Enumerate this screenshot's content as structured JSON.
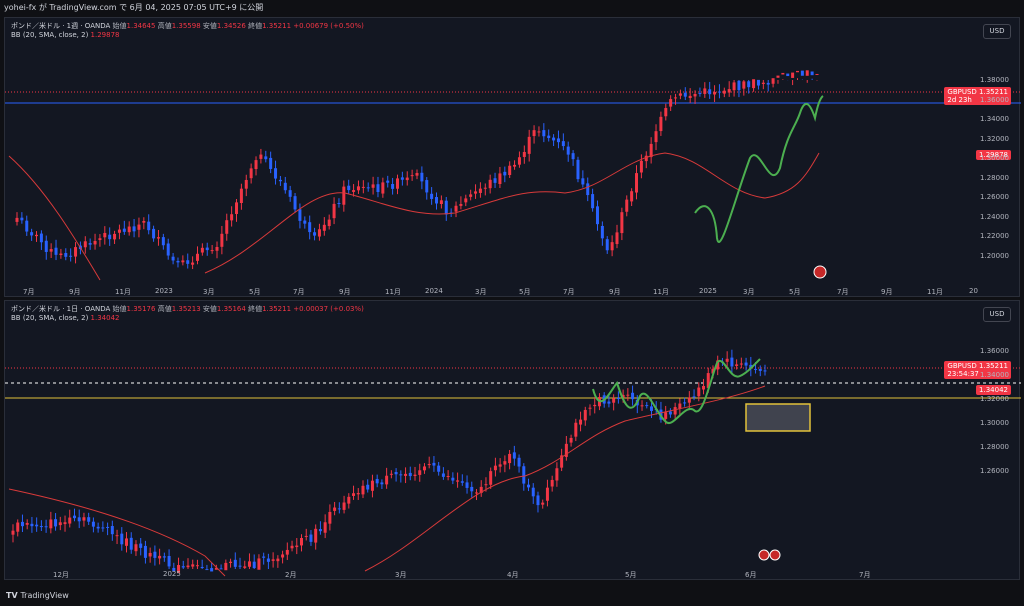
{
  "header": {
    "publish_text": "yohei-fx が TradingView.com で 6月 04, 2025 07:05 UTC+9 に公開"
  },
  "weekly": {
    "title": "ポンド／米ドル · 1週 · OANDA",
    "open_label": "始値",
    "open": "1.34645",
    "high_label": "高値",
    "high": "1.35598",
    "low_label": "安値",
    "low": "1.34526",
    "close_label": "終値",
    "close": "1.35211",
    "change": "+0.00679 (+0.50%)",
    "bb_label": "BB (20, SMA, close, 2)",
    "bb_value": "1.29878",
    "currency_button": "USD",
    "price_ticks": [
      "1.38000",
      "1.36000",
      "1.34000",
      "1.32000",
      "1.30000",
      "1.28000",
      "1.26000",
      "1.24000",
      "1.22000",
      "1.20000"
    ],
    "time_ticks": [
      "7月",
      "9月",
      "11月",
      "2023",
      "3月",
      "5月",
      "7月",
      "9月",
      "11月",
      "2024",
      "3月",
      "5月",
      "7月",
      "9月",
      "11月",
      "2025",
      "3月",
      "5月",
      "7月",
      "9月",
      "11月",
      "20"
    ],
    "symbol_tag": "GBPUSD",
    "price_tag": "1.35211",
    "countdown": "2d 23h",
    "bb_tag": "1.29878"
  },
  "daily": {
    "title": "ポンド／米ドル · 1日 · OANDA",
    "open_label": "始値",
    "open": "1.35176",
    "high_label": "高値",
    "high": "1.35213",
    "low_label": "安値",
    "low": "1.35164",
    "close_label": "終値",
    "close": "1.35211",
    "change": "+0.00037 (+0.03%)",
    "bb_label": "BB (20, SMA, close, 2)",
    "bb_value": "1.34042",
    "currency_button": "USD",
    "price_ticks": [
      "1.36000",
      "1.34000",
      "1.32000",
      "1.30000",
      "1.28000",
      "1.26000"
    ],
    "time_ticks": [
      "12月",
      "2025",
      "2月",
      "3月",
      "4月",
      "5月",
      "6月",
      "7月"
    ],
    "symbol_tag": "GBPUSD",
    "price_tag": "1.35211",
    "countdown": "23:54:37",
    "bb_tag": "1.34042"
  },
  "footer": {
    "brand": "TradingView"
  },
  "colors": {
    "up": "#f23645",
    "down": "#2962ff",
    "bb": "#d83a3a",
    "wave": "#4caf50",
    "hline": "#2962ff",
    "zone": "#e2c23a"
  }
}
